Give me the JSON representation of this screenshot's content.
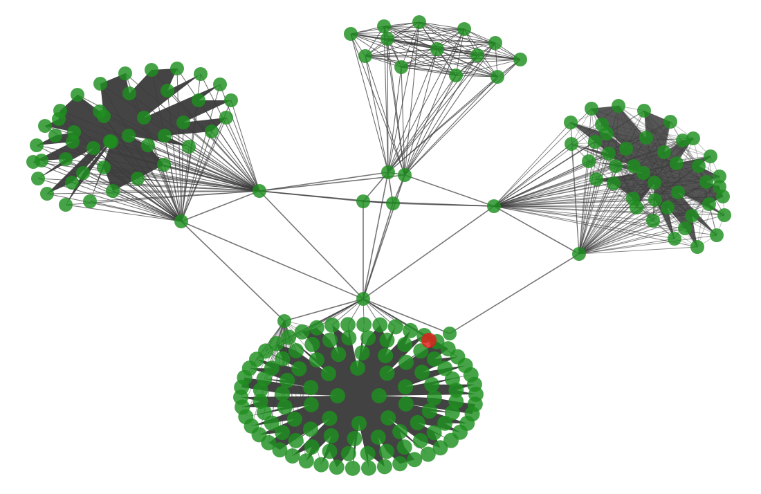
{
  "graph": {
    "node_color": "#1f8f1f",
    "highlight_color": "#e11b1b",
    "edge_color": "#3a3a3a",
    "background": "#ffffff",
    "clusters": [
      {
        "id": "cluster-left",
        "node_count": 44
      },
      {
        "id": "cluster-top",
        "node_count": 13
      },
      {
        "id": "cluster-right",
        "node_count": 42
      },
      {
        "id": "cluster-bottom",
        "node_count": 110
      }
    ],
    "hub_nodes": [
      "hub-left-a",
      "hub-left-b",
      "hub-top-a",
      "hub-top-b",
      "hub-mid-a",
      "hub-mid-b",
      "hub-right-a",
      "hub-right-b",
      "hub-center",
      "hub-bottom-left",
      "hub-bottom-right"
    ],
    "highlighted_node": "bottom-node-highlight"
  }
}
